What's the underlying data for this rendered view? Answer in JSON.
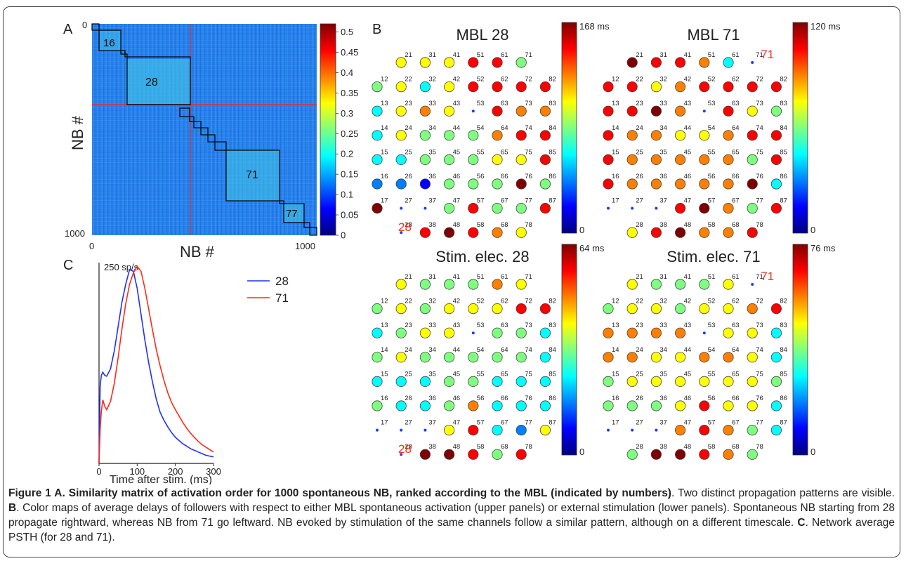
{
  "panel_labels": {
    "a": "A",
    "b": "B",
    "c": "C"
  },
  "colormap": [
    "#00007f",
    "#0000ff",
    "#007fff",
    "#00ffff",
    "#7fff7f",
    "#ffff00",
    "#ff7f00",
    "#ff0000",
    "#7f0000"
  ],
  "panel_a": {
    "xlabel": "NB #",
    "ylabel": "NB #",
    "axis_ticks": {
      "top_left": "0",
      "bottom_left": "1000",
      "x_start": "0",
      "x_end": "1000"
    },
    "block_labels": [
      "16",
      "28",
      "71",
      "77"
    ],
    "colorbar": {
      "ticks": [
        "0.5",
        "0.45",
        "0.4",
        "0.35",
        "0.3",
        "0.25",
        "0.2",
        "0.15",
        "0.1",
        "0.05",
        "0"
      ],
      "range": [
        0,
        0.52
      ]
    }
  },
  "panel_b": {
    "maps": [
      {
        "title": "MBL 28",
        "cb_max": "168 ms",
        "cb_min": "0",
        "stim": "28",
        "stim_pos": "bottom-left"
      },
      {
        "title": "MBL 71",
        "cb_max": "120 ms",
        "cb_min": "0",
        "stim": "71",
        "stim_pos": "top-right"
      },
      {
        "title": "Stim. elec. 28",
        "cb_max": "64 ms",
        "cb_min": "0",
        "stim": "28",
        "stim_pos": "bottom-left"
      },
      {
        "title": "Stim. elec. 71",
        "cb_max": "76 ms",
        "cb_min": "0",
        "stim": "71",
        "stim_pos": "top-right"
      }
    ]
  },
  "chart_data": {
    "type": "line",
    "title": "",
    "xlabel": "Time after stim. (ms)",
    "ylabel": "250 sp/s",
    "xlim": [
      0,
      300
    ],
    "x_ticks": [
      "0",
      "100",
      "200",
      "300"
    ],
    "series": [
      {
        "name": "28",
        "color": "#1f2fff",
        "x": [
          0,
          3,
          6,
          10,
          15,
          20,
          30,
          40,
          50,
          60,
          70,
          80,
          90,
          100,
          110,
          120,
          130,
          140,
          150,
          160,
          170,
          180,
          190,
          200,
          210,
          220,
          230,
          240,
          250,
          260,
          270,
          280,
          290,
          300
        ],
        "y": [
          0,
          95,
          108,
          112,
          108,
          107,
          116,
          138,
          168,
          198,
          220,
          238,
          236,
          215,
          183,
          152,
          124,
          100,
          79,
          63,
          53,
          45,
          38,
          32,
          28,
          24,
          21,
          18,
          16,
          14,
          12,
          10,
          9,
          8
        ]
      },
      {
        "name": "71",
        "color": "#ff2a1a",
        "x": [
          0,
          3,
          6,
          10,
          15,
          20,
          30,
          40,
          50,
          60,
          70,
          80,
          90,
          100,
          110,
          120,
          130,
          140,
          150,
          160,
          170,
          180,
          190,
          200,
          210,
          220,
          230,
          240,
          250,
          260,
          270,
          280,
          290,
          300
        ],
        "y": [
          0,
          42,
          64,
          78,
          70,
          66,
          76,
          98,
          130,
          165,
          196,
          220,
          234,
          242,
          236,
          215,
          190,
          164,
          140,
          120,
          102,
          87,
          75,
          66,
          58,
          50,
          43,
          37,
          32,
          27,
          23,
          20,
          17,
          14
        ]
      }
    ]
  },
  "caption": {
    "bold1": "Figure 1 A. Similarity matrix of activation order for 1000 spontaneous NB, ranked according to the MBL (indicated by numbers)",
    "text1": ". Two distinct propagation patterns are visible. ",
    "bold2": "B",
    "text2": ". Color maps of average delays of followers with respect to either MBL spontaneous activation (upper panels) or external stimulation (lower panels). Spontaneous NB starting from 28 propagate rightward, whereas NB from 71 go leftward. NB evoked by stimulation of the same channels follow a similar pattern, although on a different timescale. ",
    "bold3": "C",
    "text3": ". Network average PSTH (for 28 and 71)."
  }
}
